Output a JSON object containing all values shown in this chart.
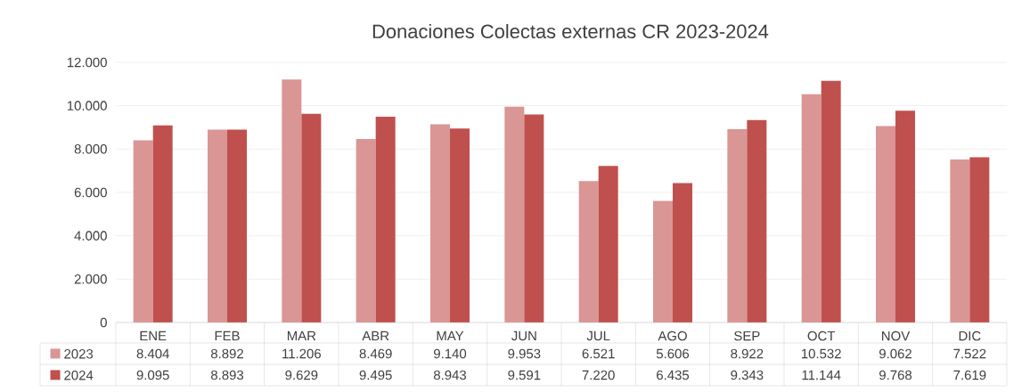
{
  "chart_data": {
    "type": "bar",
    "title": "Donaciones Colectas externas CR 2023-2024",
    "categories": [
      "ENE",
      "FEB",
      "MAR",
      "ABR",
      "MAY",
      "JUN",
      "JUL",
      "AGO",
      "SEP",
      "OCT",
      "NOV",
      "DIC"
    ],
    "series": [
      {
        "name": "2023",
        "color": "#d99694",
        "values": [
          8404,
          8892,
          11206,
          8469,
          9140,
          9953,
          6521,
          5606,
          8922,
          10532,
          9062,
          7522
        ],
        "value_labels": [
          "8.404",
          "8.892",
          "11.206",
          "8.469",
          "9.140",
          "9.953",
          "6.521",
          "5.606",
          "8.922",
          "10.532",
          "9.062",
          "7.522"
        ]
      },
      {
        "name": "2024",
        "color": "#c0504d",
        "values": [
          9095,
          8893,
          9629,
          9495,
          8943,
          9591,
          7220,
          6435,
          9343,
          11144,
          9768,
          7619
        ],
        "value_labels": [
          "9.095",
          "8.893",
          "9.629",
          "9.495",
          "8.943",
          "9.591",
          "7.220",
          "6.435",
          "9.343",
          "11.144",
          "9.768",
          "7.619"
        ]
      }
    ],
    "ylim": [
      0,
      12000
    ],
    "yticks": [
      0,
      {
        "value": 2000,
        "label": "2.000"
      },
      {
        "value": 4000,
        "label": "4.000"
      },
      {
        "value": 6000,
        "label": "6.000"
      },
      {
        "value": 8000,
        "label": "8.000"
      },
      {
        "value": 10000,
        "label": "10.000"
      },
      {
        "value": 12000,
        "label": "12.000"
      }
    ],
    "grid": "y",
    "legend": "bottom"
  }
}
